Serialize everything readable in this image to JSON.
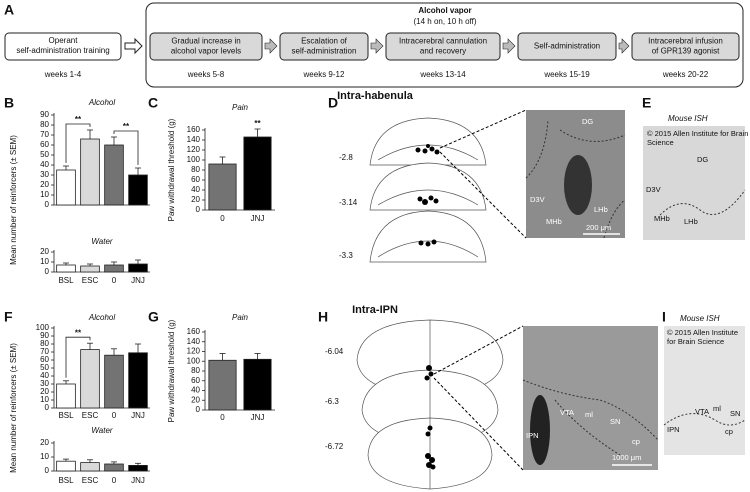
{
  "panel_labels": [
    "A",
    "B",
    "C",
    "D",
    "E",
    "F",
    "G",
    "H",
    "I"
  ],
  "timeline": {
    "start": {
      "label": [
        "Operant",
        "self-administration training"
      ],
      "weeks": "weeks 1-4"
    },
    "vapor_title": "Alcohol vapor",
    "vapor_subtitle": "(14 h on, 10 h off)",
    "steps": [
      {
        "label": [
          "Gradual increase in",
          "alcohol vapor levels"
        ],
        "weeks": "weeks 5-8"
      },
      {
        "label": [
          "Escalation of",
          "self-administration"
        ],
        "weeks": "weeks 9-12"
      },
      {
        "label": [
          "Intracerebral cannulation",
          "and recovery"
        ],
        "weeks": "weeks 13-14"
      },
      {
        "label": [
          "Self-administration"
        ],
        "weeks": "weeks 15-19"
      },
      {
        "label": [
          "Intracerebral infusion",
          "of GPR139 agonist"
        ],
        "weeks": "weeks 20-22"
      }
    ]
  },
  "section_titles": [
    "Intra-habenula",
    "Intra-IPN"
  ],
  "chart_data": [
    {
      "type": "bar",
      "title": "Alcohol",
      "y_label": "Mean number of reinforcers (± SEM)",
      "categories": [
        "BSL",
        "ESC",
        "0",
        "JNJ"
      ],
      "values": [
        35,
        66,
        60,
        30
      ],
      "errors": [
        4,
        9,
        8,
        7
      ],
      "colors": [
        "#ffffff",
        "#d9d9d9",
        "#737373",
        "#000000"
      ],
      "ylim": [
        0,
        90
      ],
      "yticks": [
        0,
        10,
        20,
        30,
        40,
        50,
        60,
        70,
        80,
        90
      ],
      "annotations": [
        "**",
        "**"
      ]
    },
    {
      "type": "bar",
      "title": "Water",
      "categories": [
        "BSL",
        "ESC",
        "0",
        "JNJ"
      ],
      "values": [
        7,
        6,
        7,
        8
      ],
      "errors": [
        2,
        2,
        3,
        4
      ],
      "colors": [
        "#ffffff",
        "#d9d9d9",
        "#737373",
        "#000000"
      ],
      "ylim": [
        0,
        20
      ],
      "yticks": [
        0,
        10,
        20
      ]
    },
    {
      "type": "bar",
      "title": "Pain",
      "y_label": "Paw withdrawal threshold (g)",
      "categories": [
        "0",
        "JNJ"
      ],
      "values": [
        92,
        146
      ],
      "errors": [
        14,
        16
      ],
      "colors": [
        "#737373",
        "#000000"
      ],
      "ylim": [
        0,
        160
      ],
      "yticks": [
        0,
        20,
        40,
        60,
        80,
        100,
        120,
        140,
        160
      ],
      "annotations": [
        "**"
      ]
    },
    {
      "type": "bar",
      "title": "Alcohol",
      "y_label": "Mean number of reinforcers (± SEM)",
      "categories": [
        "BSL",
        "ESC",
        "0",
        "JNJ"
      ],
      "values": [
        30,
        73,
        66,
        69
      ],
      "errors": [
        4,
        8,
        8,
        11
      ],
      "colors": [
        "#ffffff",
        "#d9d9d9",
        "#737373",
        "#000000"
      ],
      "ylim": [
        0,
        100
      ],
      "yticks": [
        0,
        10,
        20,
        30,
        40,
        50,
        60,
        70,
        80,
        90,
        100
      ],
      "annotations": [
        "**"
      ]
    },
    {
      "type": "bar",
      "title": "Water",
      "categories": [
        "BSL",
        "ESC",
        "0",
        "JNJ"
      ],
      "values": [
        7,
        6,
        5,
        4
      ],
      "errors": [
        1.5,
        2,
        1.5,
        1.5
      ],
      "colors": [
        "#ffffff",
        "#d9d9d9",
        "#737373",
        "#000000"
      ],
      "ylim": [
        0,
        20
      ],
      "yticks": [
        0,
        10,
        20
      ]
    },
    {
      "type": "bar",
      "title": "Pain",
      "y_label": "Paw withdrawal threshold (g)",
      "categories": [
        "0",
        "JNJ"
      ],
      "values": [
        102,
        104
      ],
      "errors": [
        14,
        12
      ],
      "colors": [
        "#737373",
        "#000000"
      ],
      "ylim": [
        0,
        160
      ],
      "yticks": [
        0,
        20,
        40,
        60,
        80,
        100,
        120,
        140,
        160
      ]
    }
  ],
  "histology": {
    "habenula": {
      "coordinates": [
        "-2.8",
        "-3.14",
        "-3.3"
      ],
      "labels": [
        "DG",
        "D3V",
        "MHb",
        "LHb"
      ],
      "scale_bar": "200 μm"
    },
    "habenula_ish": {
      "title": "Mouse ISH",
      "credit": [
        "© 2015 Allen Institute for Brain",
        "Science"
      ],
      "labels": [
        "DG",
        "D3V",
        "MHb",
        "LHb"
      ]
    },
    "ipn": {
      "coordinates": [
        "-6.04",
        "-6.3",
        "-6.72"
      ],
      "labels": [
        "VTA",
        "ml",
        "SN",
        "IPN",
        "cp"
      ],
      "scale_bar": "1000 μm"
    },
    "ipn_ish": {
      "title": "Mouse ISH",
      "credit": [
        "© 2015 Allen Institute",
        "for Brain Science"
      ],
      "labels": [
        "VTA",
        "ml",
        "SN",
        "IPN",
        "cp"
      ]
    }
  }
}
